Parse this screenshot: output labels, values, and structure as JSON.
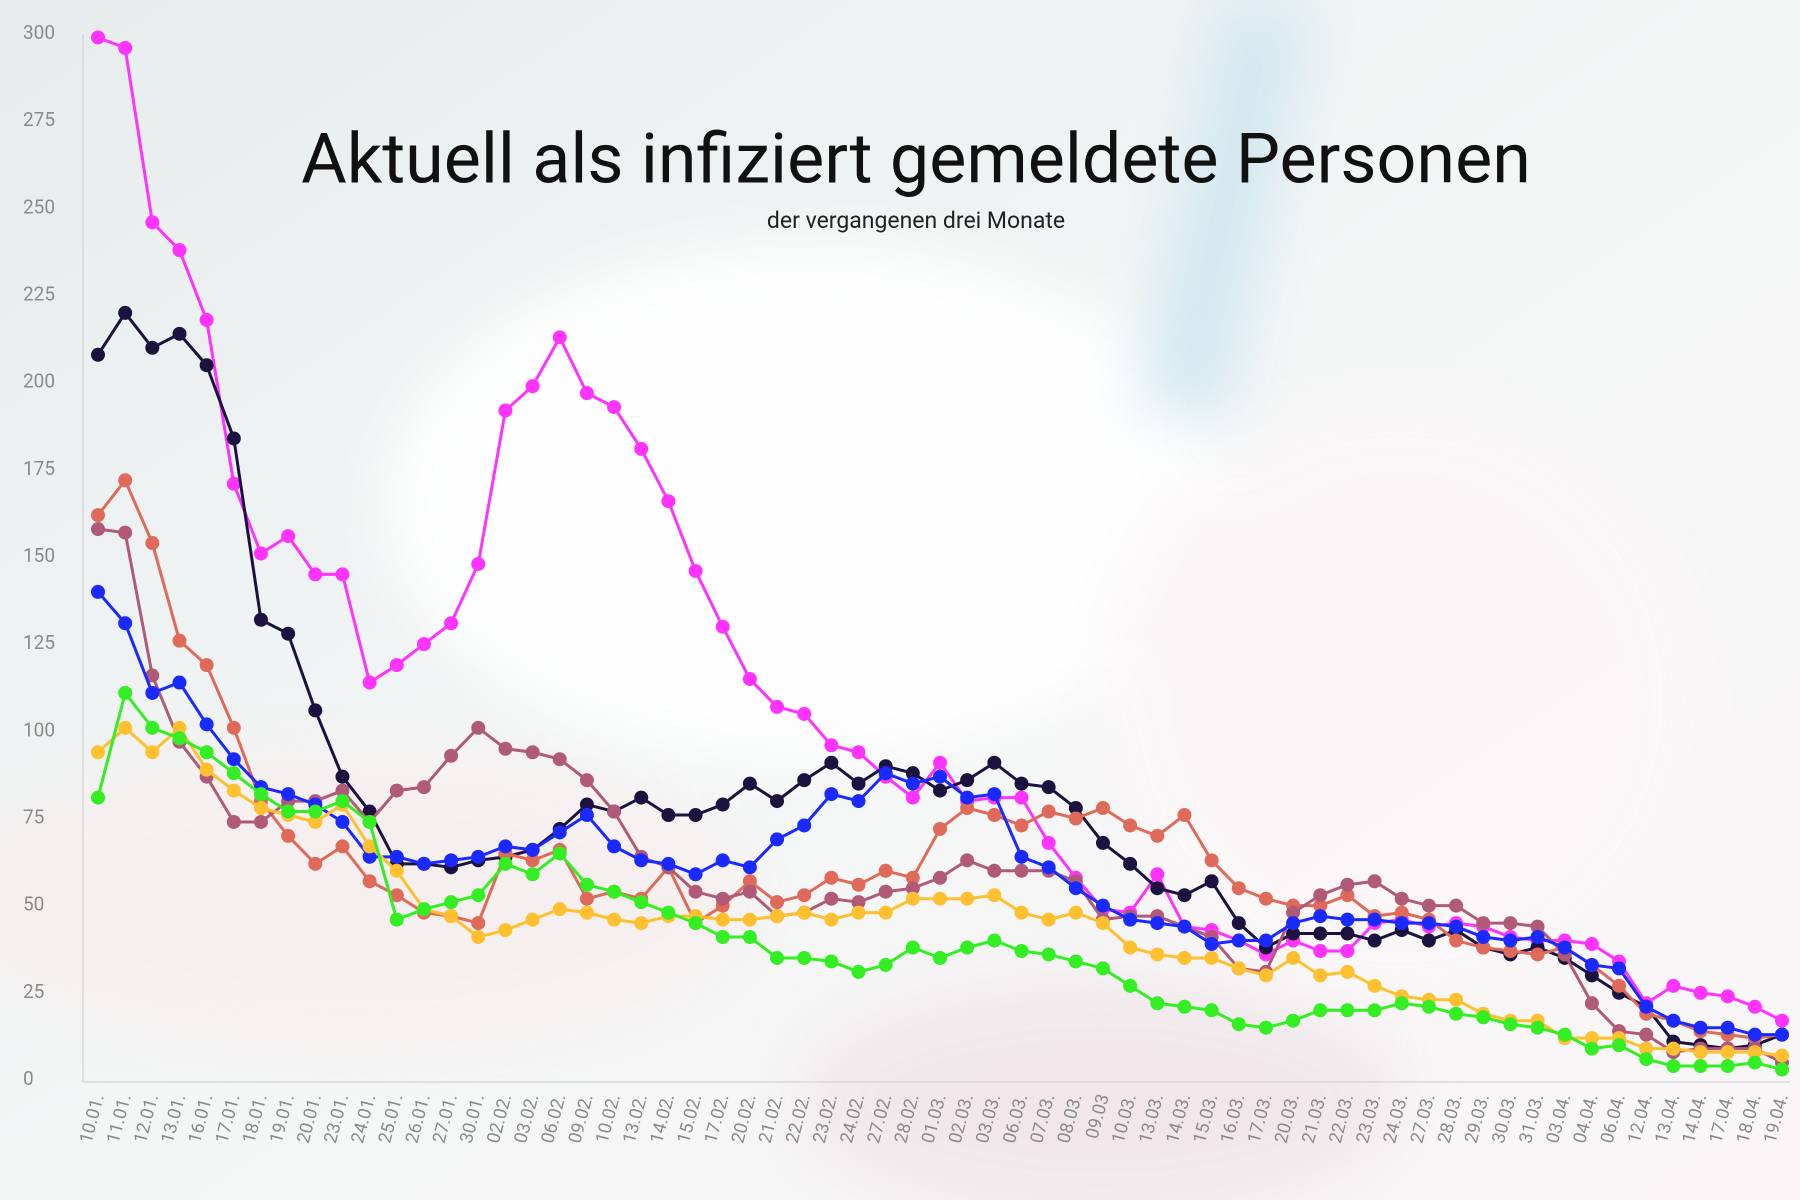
{
  "chart_data": {
    "type": "line",
    "title": "Aktuell als infiziert gemeldete Personen",
    "subtitle": "der vergangenen drei Monate",
    "categories": [
      "10.01.",
      "11.01.",
      "12.01.",
      "13.01.",
      "16.01.",
      "17.01.",
      "18.01.",
      "19.01.",
      "20.01.",
      "23.01.",
      "24.01.",
      "25.01.",
      "26.01.",
      "27.01.",
      "30.01.",
      "02.02.",
      "03.02.",
      "06.02.",
      "09.02.",
      "10.02.",
      "13.02.",
      "14.02.",
      "15.02.",
      "17.02.",
      "20.02.",
      "21.02.",
      "22.02.",
      "23.02.",
      "24.02.",
      "27.02.",
      "28.02.",
      "01.03.",
      "02.03.",
      "03.03.",
      "06.03.",
      "07.03.",
      "08.03.",
      "09.03",
      "10.03.",
      "13.03.",
      "14.03.",
      "15.03.",
      "16.03.",
      "17.03.",
      "20.03.",
      "21.03.",
      "22.03.",
      "23.03.",
      "24.03.",
      "27.03.",
      "28.03.",
      "29.03.",
      "30.03.",
      "31.03.",
      "03.04.",
      "04.04.",
      "06.04.",
      "12.04.",
      "13.04.",
      "14.04.",
      "17.04.",
      "18.04.",
      "19.04."
    ],
    "series": [
      {
        "color": "#ff33ff",
        "values": [
          299,
          296,
          246,
          238,
          218,
          171,
          151,
          156,
          145,
          145,
          114,
          119,
          125,
          131,
          148,
          192,
          199,
          213,
          197,
          193,
          181,
          166,
          146,
          130,
          115,
          107,
          105,
          96,
          94,
          87,
          81,
          91,
          80,
          81,
          81,
          68,
          58,
          49,
          48,
          59,
          44,
          43,
          40,
          36,
          40,
          37,
          37,
          45,
          46,
          44,
          45,
          44,
          41,
          40,
          40,
          39,
          34,
          22,
          27,
          25,
          24,
          21,
          17
        ]
      },
      {
        "color": "#1c1240",
        "values": [
          208,
          220,
          210,
          214,
          205,
          184,
          132,
          128,
          106,
          87,
          77,
          62,
          62,
          61,
          63,
          64,
          66,
          72,
          79,
          77,
          81,
          76,
          76,
          79,
          85,
          80,
          86,
          91,
          85,
          90,
          88,
          83,
          86,
          91,
          85,
          84,
          78,
          68,
          62,
          55,
          53,
          57,
          45,
          38,
          42,
          42,
          42,
          40,
          43,
          40,
          43,
          38,
          36,
          38,
          35,
          30,
          25,
          21,
          11,
          10,
          9,
          10,
          13
        ]
      },
      {
        "color": "#e06a5a",
        "values": [
          162,
          172,
          154,
          126,
          119,
          101,
          80,
          70,
          62,
          67,
          57,
          53,
          48,
          47,
          45,
          65,
          63,
          66,
          52,
          54,
          52,
          61,
          45,
          50,
          57,
          51,
          53,
          58,
          56,
          60,
          58,
          72,
          78,
          76,
          73,
          77,
          75,
          78,
          73,
          70,
          76,
          63,
          55,
          52,
          50,
          50,
          53,
          47,
          48,
          46,
          40,
          38,
          37,
          36,
          38,
          33,
          27,
          19,
          17,
          14,
          13,
          12,
          13
        ]
      },
      {
        "color": "#b05a78",
        "values": [
          158,
          157,
          116,
          97,
          87,
          74,
          74,
          80,
          80,
          83,
          74,
          83,
          84,
          93,
          101,
          95,
          94,
          92,
          86,
          77,
          64,
          61,
          54,
          52,
          54,
          47,
          48,
          52,
          51,
          54,
          55,
          58,
          63,
          60,
          60,
          60,
          57,
          46,
          47,
          47,
          44,
          41,
          32,
          31,
          48,
          53,
          56,
          57,
          52,
          50,
          50,
          45,
          45,
          44,
          36,
          22,
          14,
          13,
          8,
          9,
          9,
          9,
          5
        ]
      },
      {
        "color": "#1a2aff",
        "values": [
          140,
          131,
          111,
          114,
          102,
          92,
          84,
          82,
          79,
          74,
          64,
          64,
          62,
          63,
          64,
          67,
          66,
          71,
          76,
          67,
          63,
          62,
          59,
          63,
          61,
          69,
          73,
          82,
          80,
          88,
          85,
          87,
          81,
          82,
          64,
          61,
          55,
          50,
          46,
          45,
          44,
          39,
          40,
          40,
          45,
          47,
          46,
          46,
          45,
          45,
          44,
          41,
          40,
          41,
          38,
          33,
          32,
          21,
          17,
          15,
          15,
          13,
          13
        ]
      },
      {
        "color": "#ffc030",
        "values": [
          94,
          101,
          94,
          101,
          89,
          83,
          78,
          76,
          74,
          79,
          67,
          60,
          49,
          47,
          41,
          43,
          46,
          49,
          48,
          46,
          45,
          47,
          47,
          46,
          46,
          47,
          48,
          46,
          48,
          48,
          52,
          52,
          52,
          53,
          48,
          46,
          48,
          45,
          38,
          36,
          35,
          35,
          32,
          30,
          35,
          30,
          31,
          27,
          24,
          23,
          23,
          19,
          17,
          17,
          12,
          12,
          12,
          9,
          9,
          8,
          8,
          8,
          7
        ]
      },
      {
        "color": "#33ee22",
        "values": [
          81,
          111,
          101,
          98,
          94,
          88,
          82,
          77,
          77,
          80,
          74,
          46,
          49,
          51,
          53,
          62,
          59,
          65,
          56,
          54,
          51,
          48,
          45,
          41,
          41,
          35,
          35,
          34,
          31,
          33,
          38,
          35,
          38,
          40,
          37,
          36,
          34,
          32,
          27,
          22,
          21,
          20,
          16,
          15,
          17,
          20,
          20,
          20,
          22,
          21,
          19,
          18,
          16,
          15,
          13,
          9,
          10,
          6,
          4,
          4,
          4,
          5,
          3
        ]
      }
    ],
    "ylim": [
      0,
      300
    ],
    "yticks": [
      0,
      25,
      50,
      75,
      100,
      125,
      150,
      175,
      200,
      225,
      250,
      275,
      300
    ],
    "grid": false
  }
}
